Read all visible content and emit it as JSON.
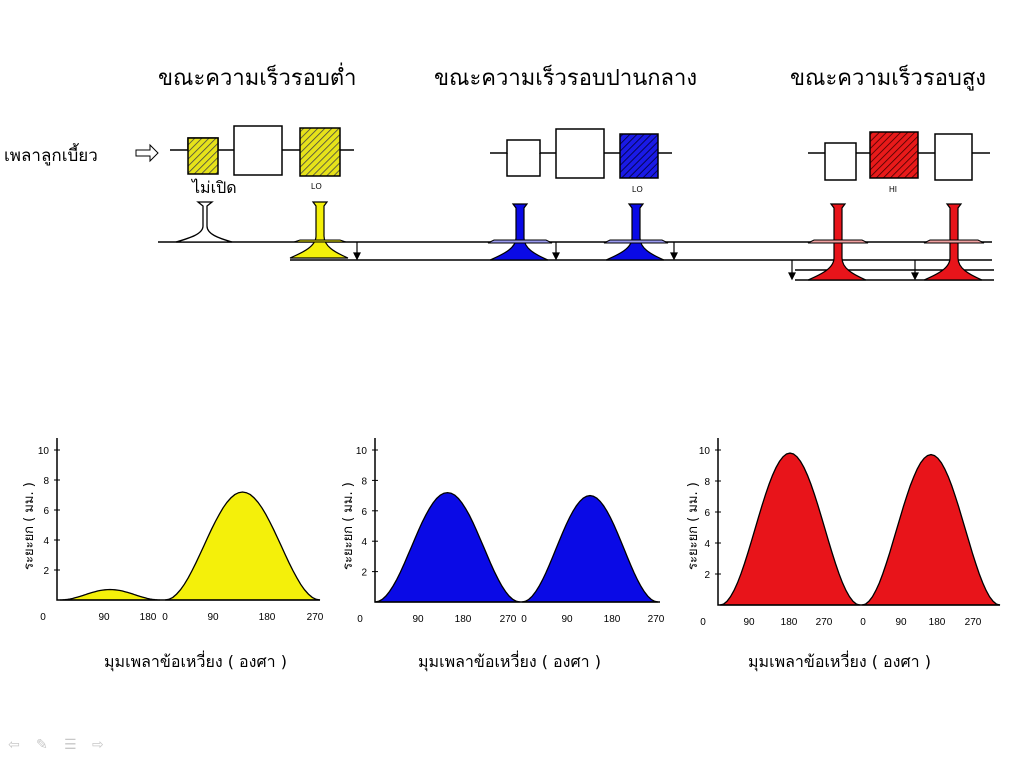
{
  "slide": {
    "titles": [
      "ขณะความเร็วรอบต่ำ",
      "ขณะความเร็วรอบปานกลาง",
      "ขณะความเร็วรอบสูง"
    ],
    "camshaft_label": "เพลาลูกเบี้ยว",
    "closed_label": "ไม่เปิด",
    "cam_tags": [
      "LO",
      "LO",
      "HI"
    ],
    "ylabel": "ระยะยก ( มม. )",
    "xlabel": "มุมเพลาข้อเหวี่ยง ( องศา )",
    "colors": {
      "low": "#f4f00a",
      "mid": "#0a0ae6",
      "high": "#e8141a"
    }
  },
  "chart_data": [
    {
      "type": "area",
      "name": "low-speed",
      "ylim": [
        0,
        10
      ],
      "yticks": [
        2,
        4,
        6,
        8,
        10
      ],
      "xtick_labels": [
        "0",
        "90",
        "180",
        "0",
        "90",
        "180",
        "270"
      ],
      "series": [
        {
          "peak_x": 90,
          "lift": 0.7
        },
        {
          "peak_x": 135,
          "lift": 7.2
        }
      ]
    },
    {
      "type": "area",
      "name": "mid-speed",
      "ylim": [
        0,
        10
      ],
      "yticks": [
        2,
        4,
        6,
        8,
        10
      ],
      "xtick_labels": [
        "0",
        "90",
        "180",
        "270",
        "0",
        "90",
        "180",
        "270"
      ],
      "series": [
        {
          "peak_x": 135,
          "lift": 7.2
        },
        {
          "peak_x": 135,
          "lift": 7.0
        }
      ]
    },
    {
      "type": "area",
      "name": "high-speed",
      "ylim": [
        0,
        10
      ],
      "yticks": [
        2,
        4,
        6,
        8,
        10
      ],
      "xtick_labels": [
        "0",
        "90",
        "180",
        "270",
        "0",
        "90",
        "180",
        "270"
      ],
      "series": [
        {
          "peak_x": 150,
          "lift": 9.8
        },
        {
          "peak_x": 150,
          "lift": 9.7
        }
      ]
    }
  ]
}
